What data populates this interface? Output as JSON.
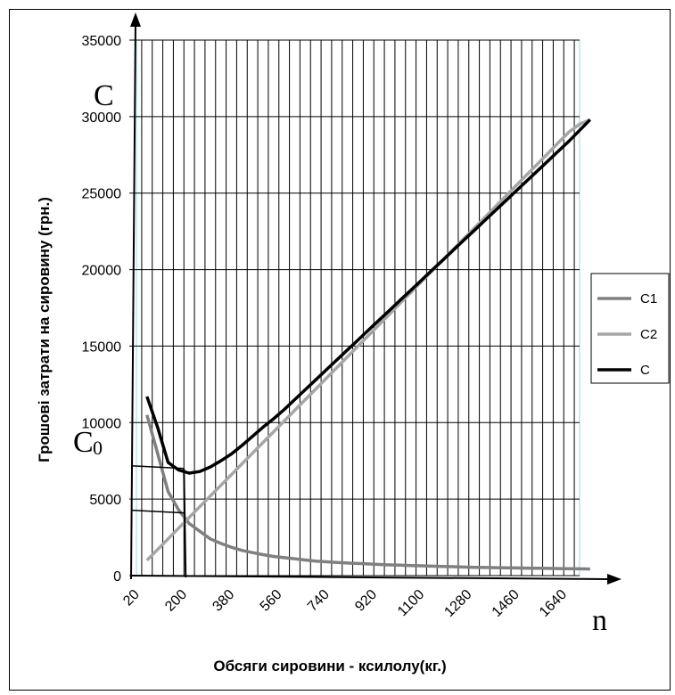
{
  "chart_data": {
    "type": "line",
    "title": "",
    "xlabel": "Обсяги сировини - ксилолу(кг.)",
    "ylabel": "Грошові затрати на сировину (грн.)",
    "ylim": [
      0,
      35000
    ],
    "yticks": [
      "0",
      "5000",
      "10000",
      "15000",
      "20000",
      "25000",
      "30000",
      "35000"
    ],
    "xticks": [
      "20",
      "200",
      "380",
      "560",
      "740",
      "920",
      "1100",
      "1280",
      "1460",
      "1640"
    ],
    "grid": true,
    "legend_position": "right",
    "annotations": {
      "c": "C",
      "c0": "C",
      "c0_sub": "0",
      "n": "n"
    },
    "series": [
      {
        "name": "C1",
        "color": "#808080",
        "x": [
          60,
          100,
          140,
          180,
          220,
          260,
          300,
          340,
          380,
          420,
          460,
          500,
          540,
          580,
          620,
          660,
          700,
          740,
          780,
          820,
          860,
          900,
          940,
          980,
          1020,
          1060,
          1100,
          1140,
          1180,
          1220,
          1260,
          1300,
          1340,
          1380,
          1420,
          1460,
          1500,
          1540,
          1580,
          1620,
          1660,
          1700,
          1740
        ],
        "y": [
          10500,
          8000,
          5500,
          4300,
          3400,
          2900,
          2400,
          2100,
          1850,
          1650,
          1500,
          1370,
          1250,
          1170,
          1100,
          1020,
          950,
          900,
          860,
          820,
          790,
          760,
          730,
          700,
          680,
          660,
          640,
          620,
          600,
          580,
          560,
          540,
          530,
          520,
          510,
          500,
          490,
          480,
          470,
          460,
          450,
          440,
          430
        ]
      },
      {
        "name": "C2",
        "color": "#a6a6a6",
        "x": [
          60,
          100,
          140,
          180,
          220,
          260,
          300,
          340,
          380,
          420,
          460,
          500,
          540,
          580,
          620,
          660,
          700,
          740,
          780,
          820,
          860,
          900,
          940,
          980,
          1020,
          1060,
          1100,
          1140,
          1180,
          1220,
          1260,
          1300,
          1340,
          1380,
          1420,
          1460,
          1500,
          1540,
          1580,
          1620,
          1660,
          1700,
          1740
        ],
        "y": [
          1000,
          1700,
          2400,
          3100,
          3800,
          4500,
          5200,
          5900,
          6600,
          7300,
          8000,
          8700,
          9400,
          10100,
          10800,
          11500,
          12200,
          12900,
          13600,
          14300,
          15000,
          15700,
          16400,
          17100,
          17800,
          18500,
          19200,
          19900,
          20600,
          21300,
          22000,
          22700,
          23400,
          24100,
          24800,
          25500,
          26200,
          26900,
          27600,
          28300,
          29000,
          29500,
          29800
        ]
      },
      {
        "name": "C",
        "color": "#000000",
        "x": [
          60,
          100,
          140,
          180,
          220,
          260,
          300,
          340,
          380,
          420,
          460,
          500,
          540,
          580,
          620,
          660,
          700,
          740,
          780,
          820,
          860,
          900,
          940,
          980,
          1020,
          1060,
          1100,
          1140,
          1180,
          1220,
          1260,
          1300,
          1340,
          1380,
          1420,
          1460,
          1500,
          1540,
          1580,
          1620,
          1660,
          1700,
          1740
        ],
        "y": [
          11700,
          9700,
          7400,
          6900,
          6700,
          6800,
          7100,
          7500,
          7950,
          8500,
          9100,
          9700,
          10250,
          10850,
          11500,
          12150,
          12800,
          13450,
          14100,
          14750,
          15400,
          16050,
          16700,
          17350,
          18000,
          18650,
          19300,
          19950,
          20600,
          21250,
          21900,
          22550,
          23200,
          23850,
          24500,
          25150,
          25800,
          26450,
          27100,
          27750,
          28400,
          29100,
          29800
        ]
      }
    ],
    "construction_lines": {
      "vertical_x": 200,
      "upper_y": 7000,
      "lower_y": 4100
    }
  }
}
